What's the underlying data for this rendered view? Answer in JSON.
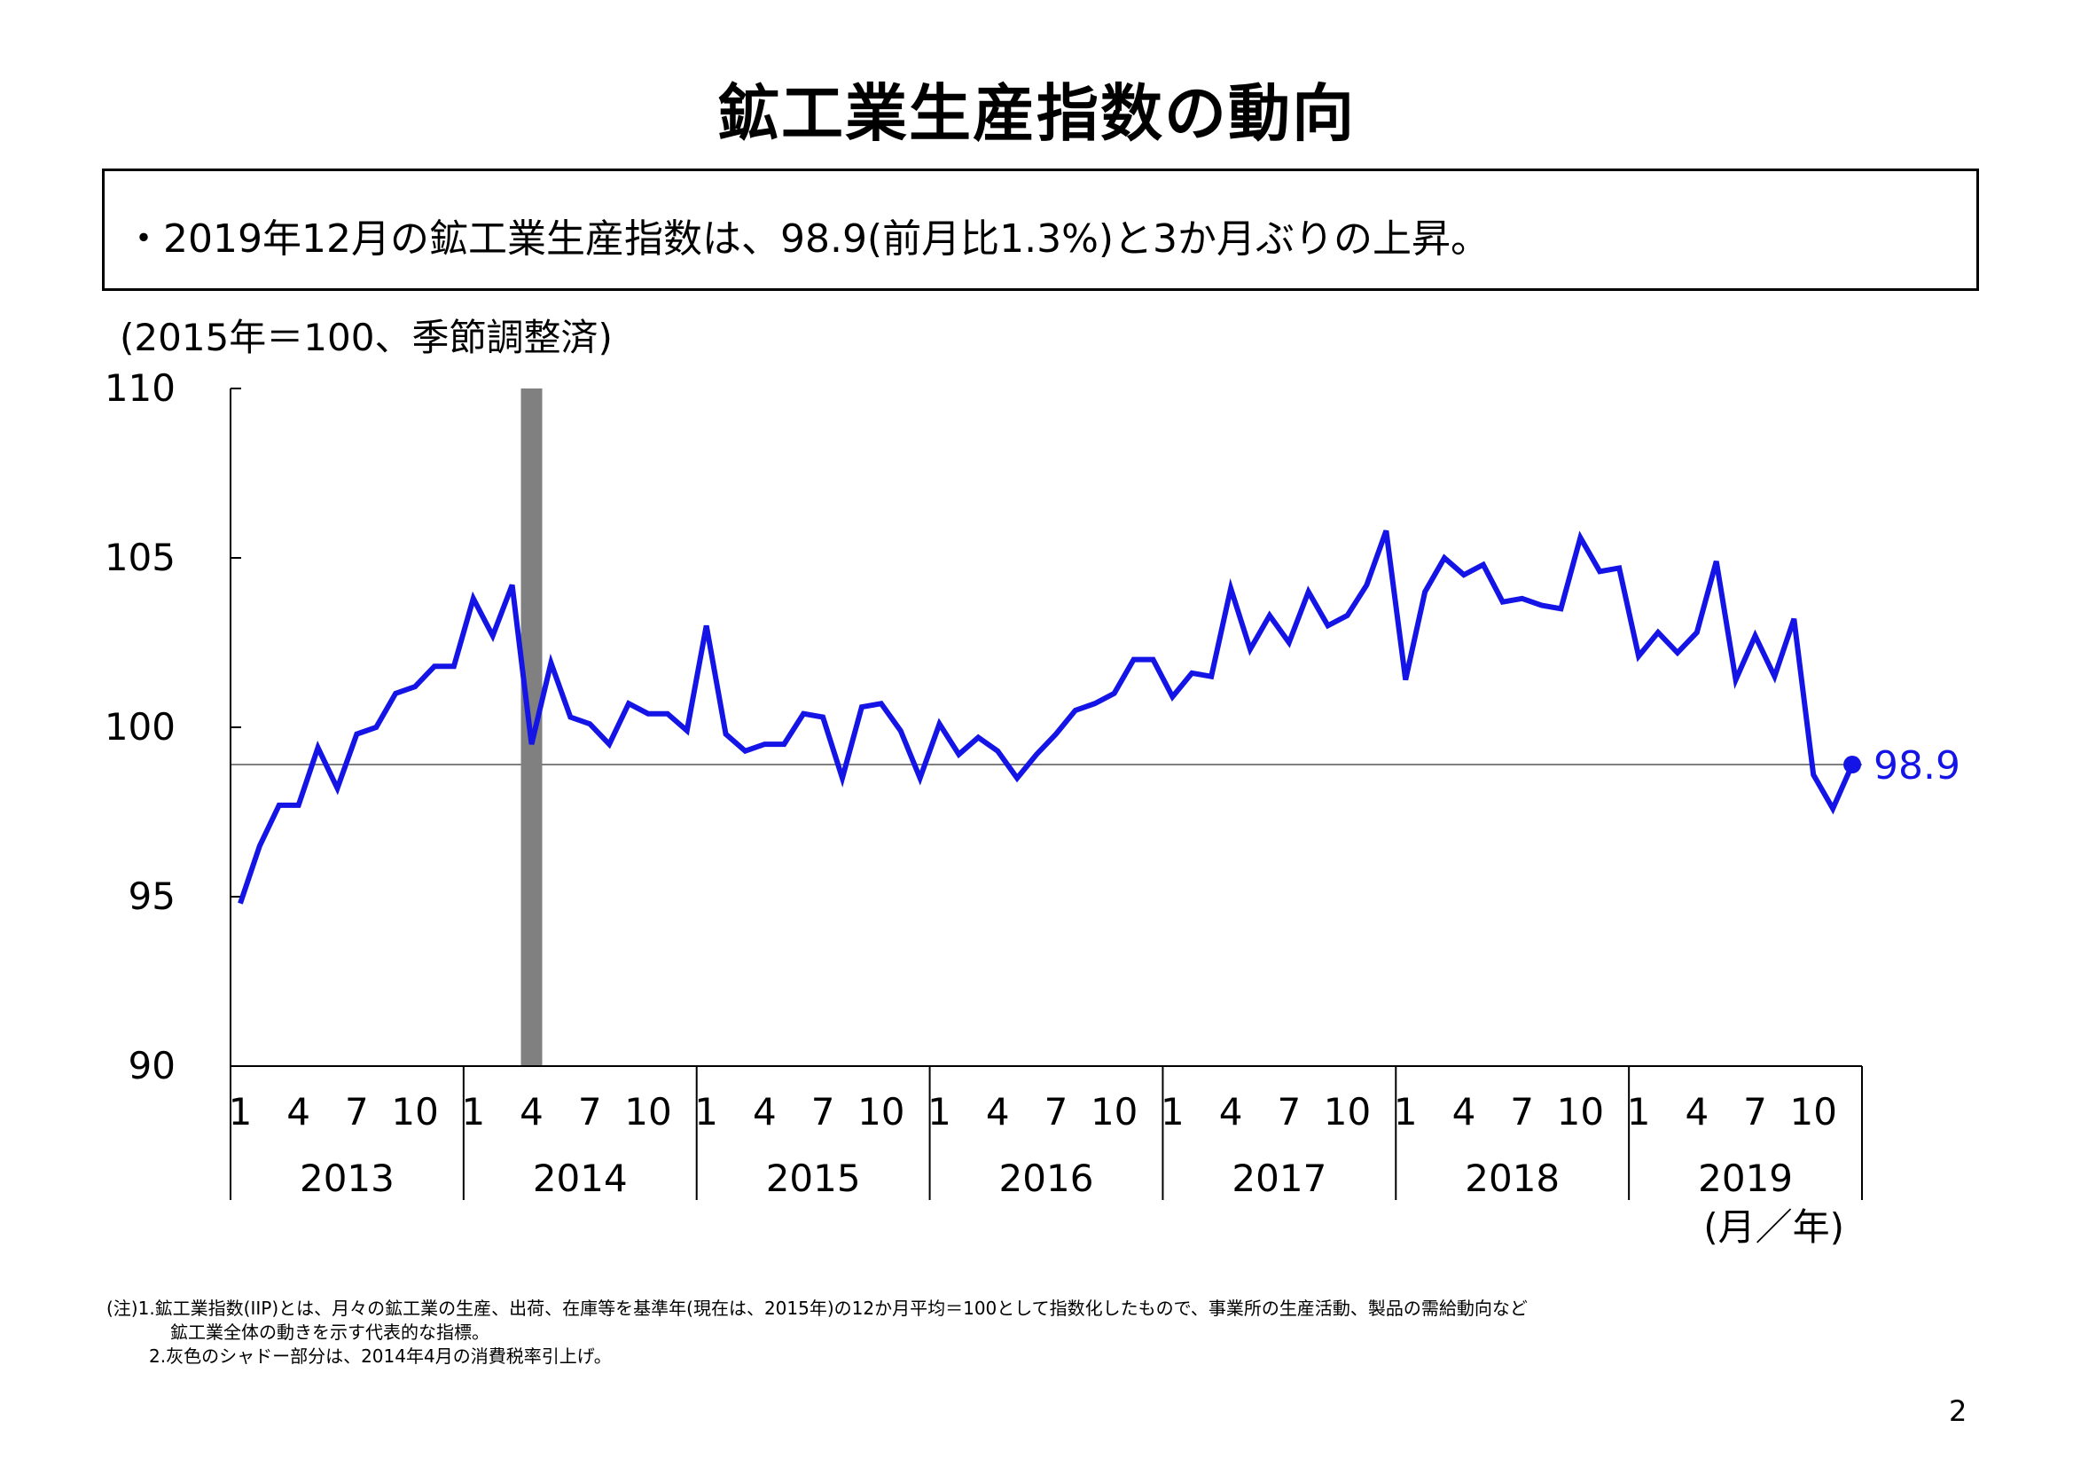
{
  "page": {
    "title": "鉱工業生産指数の動向",
    "summary": "・2019年12月の鉱工業生産指数は、98.9(前月比1.3%)と3か月ぶりの上昇。",
    "unit_label": "(2015年＝100、季節調整済)",
    "x_unit_label": "(月／年)",
    "notes": [
      "(注)1.鉱工業指数(IIP)とは、月々の鉱工業の生産、出荷、在庫等を基準年(現在は、2015年)の12か月平均＝100として指数化したもので、事業所の生産活動、製品の需給動向など",
      "鉱工業全体の動きを示す代表的な指標。",
      "2.灰色のシャドー部分は、2014年4月の消費税率引上げ。"
    ],
    "page_number": "2"
  },
  "colors": {
    "line": "#1414e6",
    "shade": "#808080",
    "reference_line": "#808080",
    "axis": "#000000"
  },
  "chart_data": {
    "type": "line",
    "ylim": [
      90,
      110
    ],
    "y_ticks": [
      "110",
      "105",
      "100",
      "95",
      "90"
    ],
    "y_tick_values": [
      110,
      105,
      100,
      95,
      90
    ],
    "month_ticks": [
      "1",
      "4",
      "7",
      "10"
    ],
    "month_tick_values": [
      1,
      4,
      7,
      10
    ],
    "years": [
      "2013",
      "2014",
      "2015",
      "2016",
      "2017",
      "2018",
      "2019"
    ],
    "start": "2013-01",
    "end": "2019-12",
    "grid": false,
    "reference_line_value": 98.9,
    "shaded_period": "2014-04",
    "latest_label": "98.9",
    "series": [
      {
        "values": [
          94.8,
          96.5,
          97.7,
          97.7,
          99.4,
          98.2,
          99.8,
          100.0,
          101.0,
          101.2,
          101.8,
          101.8,
          103.8,
          102.7,
          104.2,
          99.5,
          101.9,
          100.3,
          100.1,
          99.5,
          100.7,
          100.4,
          100.4,
          99.9,
          103.0,
          99.8,
          99.3,
          99.5,
          99.5,
          100.4,
          100.3,
          98.5,
          100.6,
          100.7,
          99.9,
          98.5,
          100.1,
          99.2,
          99.7,
          99.3,
          98.5,
          99.2,
          99.8,
          100.5,
          100.7,
          101.0,
          102.0,
          102.0,
          100.9,
          101.6,
          101.5,
          104.1,
          102.3,
          103.3,
          102.5,
          104.0,
          103.0,
          103.3,
          104.2,
          105.8,
          101.4,
          104.0,
          105.0,
          104.5,
          104.8,
          103.7,
          103.8,
          103.6,
          103.5,
          105.6,
          104.6,
          104.7,
          102.1,
          102.8,
          102.2,
          102.8,
          104.9,
          101.4,
          102.7,
          101.5,
          103.2,
          98.6,
          97.6,
          98.9
        ]
      }
    ]
  }
}
